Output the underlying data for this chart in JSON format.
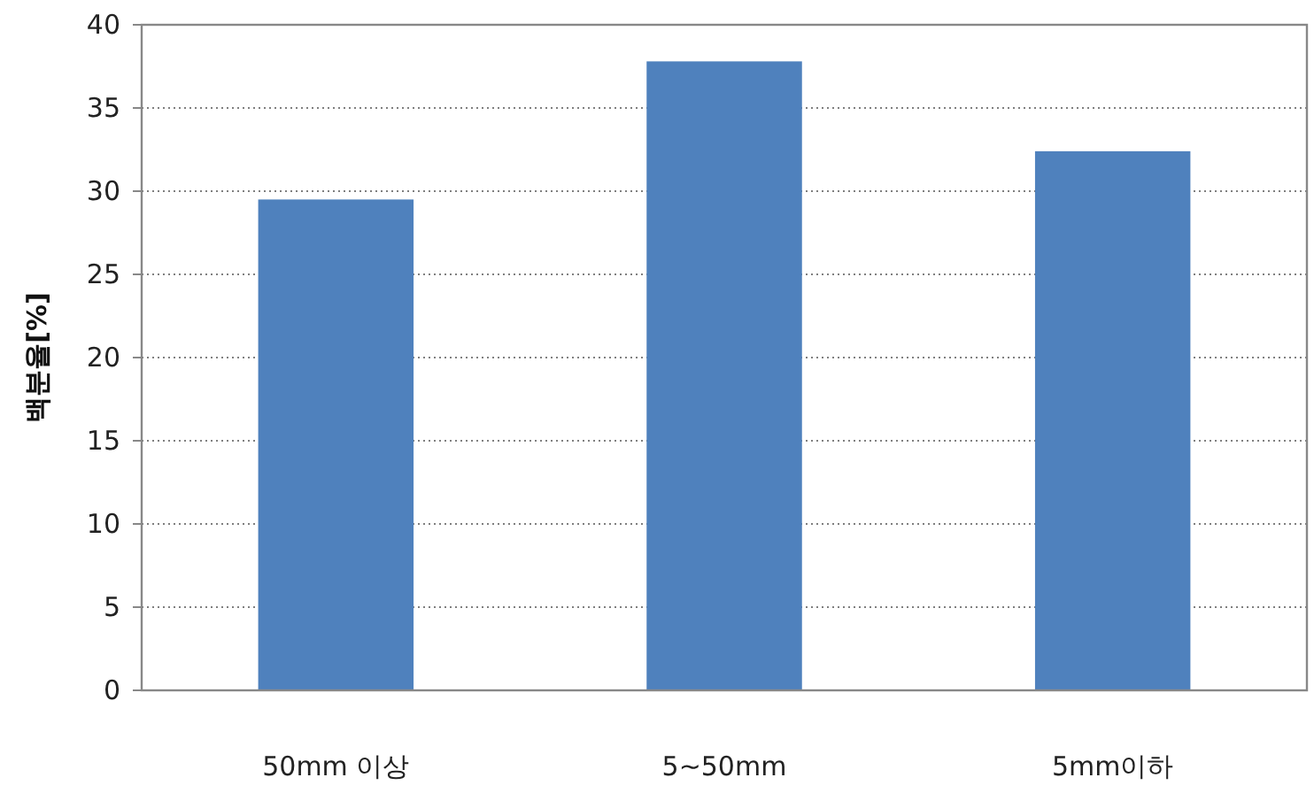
{
  "chart_data": {
    "type": "bar",
    "ylabel": "백분율[%]",
    "categories": [
      "50mm 이상",
      "5~50mm",
      "5mm이하"
    ],
    "values": [
      29.5,
      37.8,
      32.4
    ],
    "color": "#4f81bd",
    "ylim": [
      0,
      40
    ],
    "yticks": [
      0,
      5,
      10,
      15,
      20,
      25,
      30,
      35,
      40
    ],
    "grid": "y"
  }
}
